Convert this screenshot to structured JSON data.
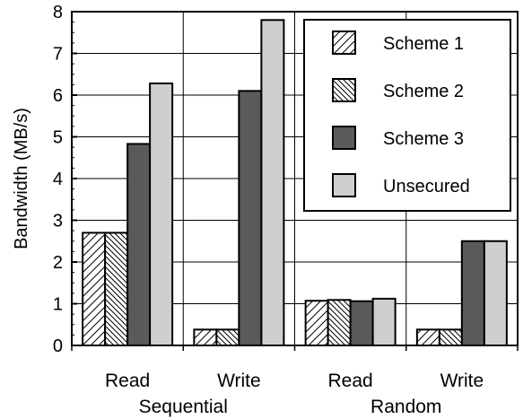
{
  "chart_data": {
    "type": "bar",
    "title": "",
    "xlabel": "",
    "ylabel": "Bandwidth (MB/s)",
    "ylim": [
      0,
      8
    ],
    "yticks": [
      0,
      1,
      2,
      3,
      4,
      5,
      6,
      7,
      8
    ],
    "grid": "major gridlines on both axes",
    "legend_position": "top-right",
    "categories": [
      "Read",
      "Write",
      "Read",
      "Write"
    ],
    "groups": [
      {
        "label": "Sequential",
        "categories": [
          "Read",
          "Write"
        ]
      },
      {
        "label": "Random",
        "categories": [
          "Read",
          "Write"
        ]
      }
    ],
    "series": [
      {
        "name": "Scheme 1",
        "pattern": "diagonal-hatch",
        "color": "#ffffff",
        "values": [
          2.7,
          0.38,
          1.07,
          0.38
        ]
      },
      {
        "name": "Scheme 2",
        "pattern": "cross-diagonal-hatch",
        "color": "#ffffff",
        "values": [
          2.7,
          0.38,
          1.09,
          0.38
        ]
      },
      {
        "name": "Scheme 3",
        "pattern": "solid",
        "color": "#5a5a5a",
        "values": [
          4.83,
          6.1,
          1.06,
          2.5
        ]
      },
      {
        "name": "Unsecured",
        "pattern": "solid",
        "color": "#cfcfcf",
        "values": [
          6.28,
          7.8,
          1.12,
          2.5
        ]
      }
    ]
  }
}
